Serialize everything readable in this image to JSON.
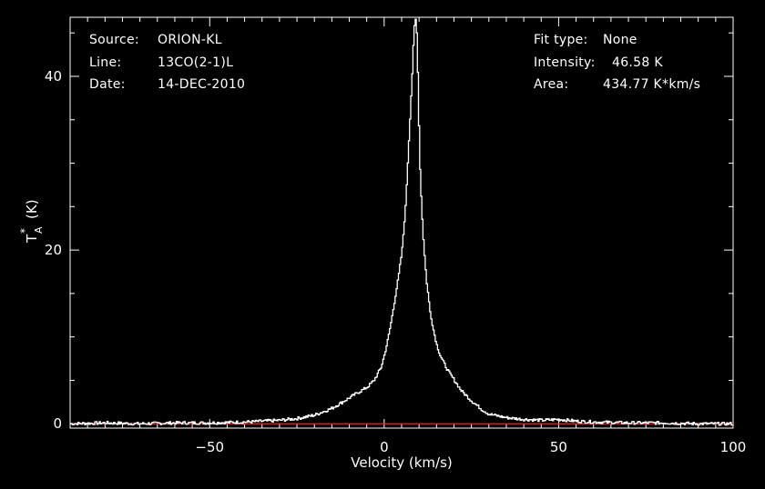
{
  "header_left": {
    "source_label": "Source:",
    "source_value": "ORION-KL",
    "line_label": "Line:",
    "line_value": "13CO(2-1)L",
    "date_label": "Date:",
    "date_value": "14-DEC-2010"
  },
  "header_right": {
    "fit_label": "Fit type:",
    "fit_value": "None",
    "intensity_label": "Intensity:",
    "intensity_value": "46.58 K",
    "area_label": "Area:",
    "area_value": "434.77 K*km/s"
  },
  "colors": {
    "background": "#000000",
    "axes": "#ffffff",
    "spectrum": "#ffffff",
    "baseline": "#ff2020"
  },
  "chart_data": {
    "type": "line",
    "xlabel": "Velocity (km/s)",
    "ylabel_main": "T",
    "ylabel_sub": "A",
    "ylabel_sup": "*",
    "ylabel_unit": "(K)",
    "xlim": [
      -90,
      100
    ],
    "ylim": [
      -0.5,
      46.8
    ],
    "x_ticks": [
      -50,
      0,
      50,
      100
    ],
    "x_tick_labels": [
      "−50",
      "0",
      "50",
      "100"
    ],
    "y_ticks": [
      0,
      20,
      40
    ],
    "y_tick_labels": [
      "0",
      "20",
      "40"
    ],
    "grid": false,
    "baseline_value": 0,
    "series": [
      {
        "x": [
          -90,
          -80,
          -70,
          -60,
          -50,
          -40,
          -30,
          -25,
          -20,
          -15,
          -10,
          -8,
          -5,
          -3,
          -1,
          0,
          1,
          2,
          3,
          4,
          5,
          6,
          6.5,
          7,
          7.5,
          8,
          8.3,
          8.6,
          8.9,
          9.2,
          9.5,
          9.8,
          10.1,
          10.5,
          11,
          11.5,
          12,
          13,
          14,
          15,
          16,
          17,
          18,
          20,
          22,
          25,
          28,
          30,
          35,
          40,
          45,
          50,
          55,
          60,
          70,
          80,
          90,
          100
        ],
        "y": [
          0.0,
          0.1,
          0.0,
          0.1,
          0.1,
          0.2,
          0.4,
          0.6,
          1.0,
          1.8,
          3.0,
          3.5,
          4.2,
          5.0,
          6.5,
          8.0,
          9.8,
          12.0,
          14.5,
          17.0,
          20.0,
          25.0,
          29.0,
          33.0,
          37.0,
          41.0,
          44.0,
          46.0,
          46.58,
          45.0,
          41.0,
          35.0,
          30.0,
          26.0,
          22.0,
          19.0,
          16.5,
          13.0,
          10.8,
          9.0,
          7.8,
          7.0,
          6.2,
          5.0,
          3.8,
          2.6,
          1.6,
          1.1,
          0.7,
          0.5,
          0.4,
          0.5,
          0.3,
          0.2,
          0.1,
          0.1,
          0.0,
          0.0
        ]
      }
    ]
  }
}
